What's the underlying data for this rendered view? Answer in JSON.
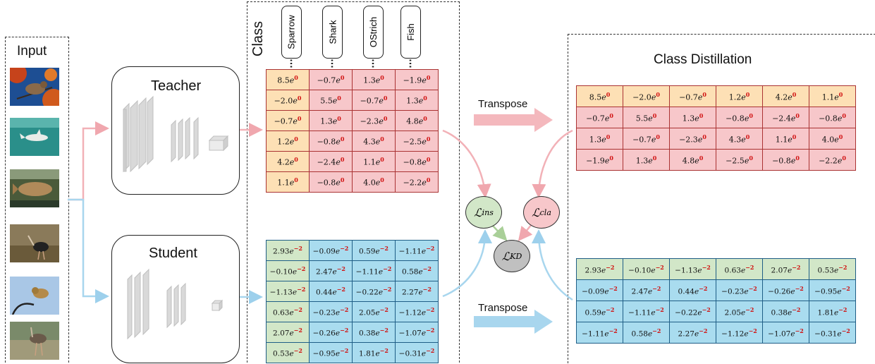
{
  "input": {
    "label": "Input",
    "images": [
      "sparrow-image",
      "shark-image",
      "fish-image",
      "ostrich-image",
      "bird-image",
      "ostrich-image-2"
    ]
  },
  "teacher": {
    "label": "Teacher"
  },
  "student": {
    "label": "Student"
  },
  "class_section": {
    "label": "Class",
    "classes": [
      "Sparrow",
      "Shark",
      "OStrich",
      "Fish"
    ]
  },
  "transpose_top": "Transpose",
  "transpose_bottom": "Transpose",
  "distillation_title": "Class Distillation",
  "losses": {
    "ins": "ins",
    "cla": "cla",
    "kd": "KD",
    "symbol": "ℒ"
  },
  "teacher_matrix": [
    [
      "8.5",
      "−0.7",
      "1.3",
      "−1.9"
    ],
    [
      "−2.0",
      "5.5",
      "−0.7",
      "1.3"
    ],
    [
      "−0.7",
      "1.3",
      "−2.3",
      "4.8"
    ],
    [
      "1.2",
      "−0.8",
      "4.3",
      "−2.5"
    ],
    [
      "4.2",
      "−2.4",
      "1.1",
      "−0.8"
    ],
    [
      "1.1",
      "−0.8",
      "4.0",
      "−2.2"
    ]
  ],
  "teacher_exponent": "0",
  "student_matrix": [
    [
      "2.93",
      "−0.09",
      "0.59",
      "−1.11"
    ],
    [
      "−0.10",
      "2.47",
      "−1.11",
      "0.58"
    ],
    [
      "−1.13",
      "0.44",
      "−0.22",
      "2.27"
    ],
    [
      "0.63",
      "−0.23",
      "2.05",
      "−1.12"
    ],
    [
      "2.07",
      "−0.26",
      "0.38",
      "−1.07"
    ],
    [
      "0.53",
      "−0.95",
      "1.81",
      "−0.31"
    ]
  ],
  "student_exponent": "−2",
  "teacher_transposed": [
    [
      "8.5",
      "−2.0",
      "−0.7",
      "1.2",
      "4.2",
      "1.1"
    ],
    [
      "−0.7",
      "5.5",
      "1.3",
      "−0.8",
      "−2.4",
      "−0.8"
    ],
    [
      "1.3",
      "−0.7",
      "−2.3",
      "4.3",
      "1.1",
      "4.0"
    ],
    [
      "−1.9",
      "1.3",
      "4.8",
      "−2.5",
      "−0.8",
      "−2.2"
    ]
  ],
  "student_transposed": [
    [
      "2.93",
      "−0.10",
      "−1.13",
      "0.63",
      "2.07",
      "0.53"
    ],
    [
      "−0.09",
      "2.47",
      "0.44",
      "−0.23",
      "−0.26",
      "−0.95"
    ],
    [
      "0.59",
      "−1.11",
      "−0.22",
      "2.05",
      "0.38",
      "1.81"
    ],
    [
      "−1.11",
      "0.58",
      "2.27",
      "−1.12",
      "−1.07",
      "−0.31"
    ]
  ],
  "colors": {
    "teacher_first": "#fde0b5",
    "teacher_rest": "#f7c7ca",
    "student_first": "#d2e7c8",
    "student_rest": "#a9dcef",
    "pink_arrow": "#f4b8bd",
    "blue_arrow": "#a8d6ee",
    "exponent_red": "#d11111"
  }
}
